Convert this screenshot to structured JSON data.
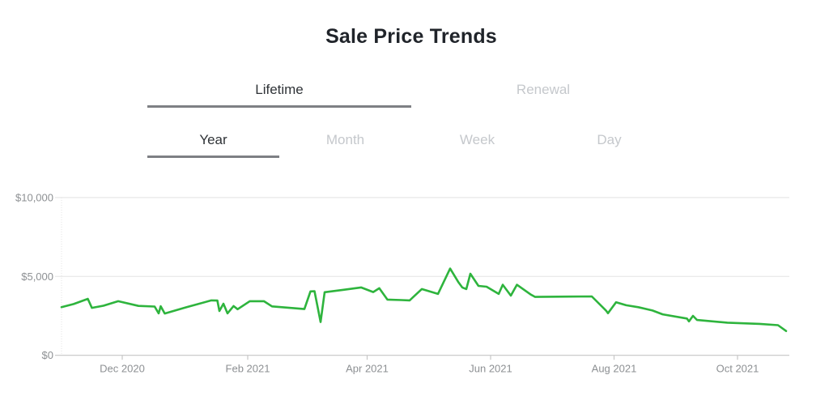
{
  "title": "Sale Price Trends",
  "tabs_primary": {
    "items": [
      {
        "label": "Lifetime",
        "active": true
      },
      {
        "label": "Renewal",
        "active": false
      }
    ]
  },
  "tabs_secondary": {
    "items": [
      {
        "label": "Year",
        "active": true
      },
      {
        "label": "Month",
        "active": false
      },
      {
        "label": "Week",
        "active": false
      },
      {
        "label": "Day",
        "active": false
      }
    ]
  },
  "colors": {
    "line_green": "#2eb43d",
    "gridline": "#e7e7e7",
    "axis": "#c6c6c6",
    "axis_dotted": "#e2e2e2",
    "axis_label": "#8d9093",
    "active_tab_text": "#2f3337",
    "inactive_tab_text": "#c5c8cc",
    "tab_underline": "#7e8084",
    "title_text": "#20242a"
  },
  "chart_data": {
    "type": "line",
    "title": "Sale Price Trends",
    "xlabel": "",
    "ylabel": "",
    "ylim": [
      0,
      10000
    ],
    "x_range": [
      "2020-11-01",
      "2021-11-01"
    ],
    "grid": "horizontal",
    "legend": "none",
    "y_ticks": [
      {
        "label": "$0",
        "value": 0
      },
      {
        "label": "$5,000",
        "value": 5000
      },
      {
        "label": "$10,000",
        "value": 10000
      }
    ],
    "x_ticks": [
      {
        "label": "Dec 2020",
        "date": "2020-12-01"
      },
      {
        "label": "Feb 2021",
        "date": "2021-02-01"
      },
      {
        "label": "Apr 2021",
        "date": "2021-04-01"
      },
      {
        "label": "Jun 2021",
        "date": "2021-06-01"
      },
      {
        "label": "Aug 2021",
        "date": "2021-08-01"
      },
      {
        "label": "Oct 2021",
        "date": "2021-10-01"
      }
    ],
    "series": [
      {
        "name": "Sale Price",
        "color": "#2eb43d",
        "points": [
          [
            "2020-11-01",
            3050
          ],
          [
            "2020-11-07",
            3250
          ],
          [
            "2020-11-14",
            3580
          ],
          [
            "2020-11-16",
            3010
          ],
          [
            "2020-11-22",
            3150
          ],
          [
            "2020-11-29",
            3430
          ],
          [
            "2020-12-09",
            3130
          ],
          [
            "2020-12-17",
            3090
          ],
          [
            "2020-12-19",
            2660
          ],
          [
            "2020-12-20",
            3110
          ],
          [
            "2020-12-22",
            2650
          ],
          [
            "2021-01-02",
            3060
          ],
          [
            "2021-01-14",
            3480
          ],
          [
            "2021-01-17",
            3470
          ],
          [
            "2021-01-18",
            2810
          ],
          [
            "2021-01-20",
            3270
          ],
          [
            "2021-01-22",
            2660
          ],
          [
            "2021-01-25",
            3120
          ],
          [
            "2021-01-27",
            2920
          ],
          [
            "2021-02-02",
            3430
          ],
          [
            "2021-02-09",
            3430
          ],
          [
            "2021-02-13",
            3100
          ],
          [
            "2021-03-01",
            2930
          ],
          [
            "2021-03-04",
            4050
          ],
          [
            "2021-03-06",
            4060
          ],
          [
            "2021-03-09",
            2110
          ],
          [
            "2021-03-11",
            4000
          ],
          [
            "2021-03-20",
            4150
          ],
          [
            "2021-03-29",
            4300
          ],
          [
            "2021-04-04",
            4010
          ],
          [
            "2021-04-07",
            4250
          ],
          [
            "2021-04-11",
            3530
          ],
          [
            "2021-04-18",
            3500
          ],
          [
            "2021-04-22",
            3480
          ],
          [
            "2021-04-28",
            4200
          ],
          [
            "2021-05-06",
            3890
          ],
          [
            "2021-05-12",
            5500
          ],
          [
            "2021-05-16",
            4650
          ],
          [
            "2021-05-18",
            4300
          ],
          [
            "2021-05-20",
            4200
          ],
          [
            "2021-05-22",
            5170
          ],
          [
            "2021-05-26",
            4400
          ],
          [
            "2021-05-30",
            4350
          ],
          [
            "2021-06-05",
            3890
          ],
          [
            "2021-06-07",
            4470
          ],
          [
            "2021-06-11",
            3785
          ],
          [
            "2021-06-14",
            4470
          ],
          [
            "2021-06-21",
            3840
          ],
          [
            "2021-06-23",
            3700
          ],
          [
            "2021-07-10",
            3720
          ],
          [
            "2021-07-21",
            3730
          ],
          [
            "2021-07-28",
            2840
          ],
          [
            "2021-07-29",
            2670
          ],
          [
            "2021-08-02",
            3360
          ],
          [
            "2021-08-07",
            3170
          ],
          [
            "2021-08-13",
            3050
          ],
          [
            "2021-08-20",
            2840
          ],
          [
            "2021-08-25",
            2600
          ],
          [
            "2021-09-06",
            2330
          ],
          [
            "2021-09-07",
            2150
          ],
          [
            "2021-09-09",
            2500
          ],
          [
            "2021-09-11",
            2240
          ],
          [
            "2021-09-26",
            2070
          ],
          [
            "2021-10-12",
            1990
          ],
          [
            "2021-10-21",
            1910
          ],
          [
            "2021-10-25",
            1540
          ]
        ]
      }
    ]
  }
}
